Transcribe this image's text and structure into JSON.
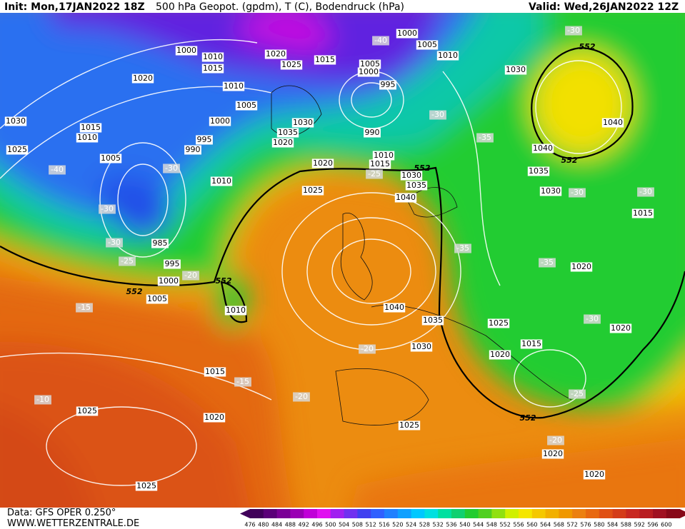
{
  "header": {
    "init": "Init: Mon,17JAN2022 18Z",
    "title": "500 hPa Geopot. (gpdm), T (C), Bodendruck (hPa)",
    "valid": "Valid: Wed,26JAN2022 12Z"
  },
  "footer": {
    "source": "Data: GFS OPER 0.250°",
    "site": "WWW.WETTERZENTRALE.DE"
  },
  "colorbar": {
    "levels": [
      476,
      480,
      484,
      488,
      492,
      496,
      500,
      504,
      508,
      512,
      516,
      520,
      524,
      528,
      532,
      536,
      540,
      544,
      548,
      552,
      556,
      560,
      564,
      568,
      572,
      576,
      580,
      584,
      588,
      592,
      596,
      600
    ]
  },
  "map_labels": [
    "1000",
    "1010",
    "1015",
    "1020",
    "1010",
    "1005",
    "1000",
    "1030",
    "1015",
    "1010",
    "1025",
    "995",
    "990",
    "1005",
    "-40",
    "-30",
    "1010",
    "-30",
    "985",
    "-30",
    "-25",
    "995",
    "-20",
    "1000",
    "1005",
    "1010",
    "-15",
    "1015",
    "-15",
    "1020",
    "-10",
    "1025",
    "1025",
    "1020",
    "1025",
    "1015",
    "1030",
    "1035",
    "1020",
    "1000",
    "-40",
    "1005",
    "1010",
    "1005",
    "1000",
    "995",
    "990",
    "1010",
    "1015",
    "1020",
    "1025",
    "-25",
    "1030",
    "1035",
    "1040",
    "-30",
    "-35",
    "1030",
    "-30",
    "1040",
    "1040",
    "1035",
    "1030",
    "-30",
    "-30",
    "1015",
    "-35",
    "-35",
    "1020",
    "1040",
    "1035",
    "1025",
    "1015",
    "1020",
    "-30",
    "1020",
    "1030",
    "-20",
    "-20",
    "-25",
    "1025",
    "-20",
    "1020",
    "1020",
    "552",
    "552",
    "552",
    "552",
    "552",
    "552"
  ]
}
